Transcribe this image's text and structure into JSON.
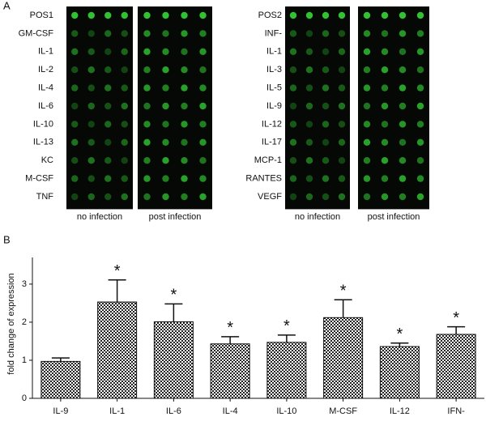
{
  "panel_a": {
    "label": "A",
    "left_array": {
      "rows": [
        "POS1",
        "GM-CSF",
        "IL-1",
        "IL-2",
        "IL-4",
        "IL-6",
        "IL-10",
        "IL-13",
        "KC",
        "M-CSF",
        "TNF"
      ],
      "conditions": [
        "no infection",
        "post infection"
      ]
    },
    "right_array": {
      "rows": [
        "POS2",
        "INF-",
        "IL-1",
        "IL-3",
        "IL-5",
        "IL-9",
        "IL-12",
        "IL-17",
        "MCP-1",
        "RANTES",
        "VEGF"
      ],
      "conditions": [
        "no infection",
        "post infection"
      ]
    }
  },
  "chart_data": {
    "type": "bar",
    "panel_label": "B",
    "ylabel": "fold change of expression",
    "categories": [
      "IL-9",
      "IL-1",
      "IL-6",
      "IL-4",
      "IL-10",
      "M-CSF",
      "IL-12",
      "IFN-"
    ],
    "values": [
      0.97,
      2.53,
      2.01,
      1.43,
      1.47,
      2.12,
      1.36,
      1.68
    ],
    "errors": [
      0.09,
      0.58,
      0.47,
      0.19,
      0.19,
      0.47,
      0.09,
      0.2
    ],
    "annotations": [
      null,
      "*",
      "*",
      "*",
      "*",
      "*",
      "*",
      "*"
    ],
    "ylim": [
      0,
      3.7
    ],
    "yticks": [
      0,
      1,
      2,
      3
    ]
  }
}
